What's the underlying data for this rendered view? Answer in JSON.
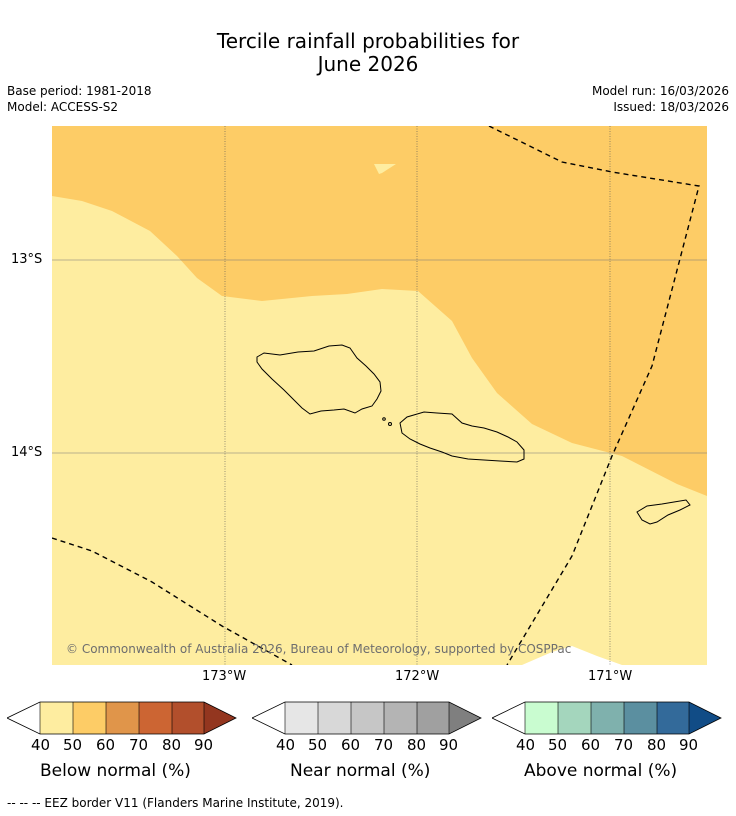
{
  "title_line1": "Tercile rainfall probabilities for",
  "title_line2": "June 2026",
  "meta": {
    "base_period": "Base period: 1981-2018",
    "model": "Model: ACCESS-S2",
    "model_run": "Model run: 16/03/2026",
    "issued": "Issued: 18/03/2026"
  },
  "map": {
    "lat_labels": [
      "13°S",
      "14°S"
    ],
    "lon_labels": [
      "173°W",
      "172°W",
      "171°W"
    ],
    "copyright": "© Commonwealth of Australia 2026, Bureau of Meteorology, supported by COSPPac"
  },
  "colorbars": [
    {
      "name": "below",
      "label": "Below normal (%)",
      "ticks": [
        "40",
        "50",
        "60",
        "70",
        "80",
        "90"
      ],
      "colors": [
        "#ffffff",
        "#feeda0",
        "#fdcc66",
        "#e0954a",
        "#cc6533",
        "#b24f2c",
        "#93361f"
      ]
    },
    {
      "name": "near",
      "label": "Near normal (%)",
      "ticks": [
        "40",
        "50",
        "60",
        "70",
        "80",
        "90"
      ],
      "colors": [
        "#ffffff",
        "#e6e6e6",
        "#d8d8d8",
        "#c6c6c6",
        "#b4b4b4",
        "#a0a0a0",
        "#7f7f7f"
      ]
    },
    {
      "name": "above",
      "label": "Above normal (%)",
      "ticks": [
        "40",
        "50",
        "60",
        "70",
        "80",
        "90"
      ],
      "colors": [
        "#ffffff",
        "#c9fcd0",
        "#a4d6bd",
        "#7fb1ad",
        "#5b8fa0",
        "#336a9a",
        "#114c86"
      ]
    }
  ],
  "footer": "-- -- -- EEZ border V11 (Flanders Marine Institute, 2019)."
}
